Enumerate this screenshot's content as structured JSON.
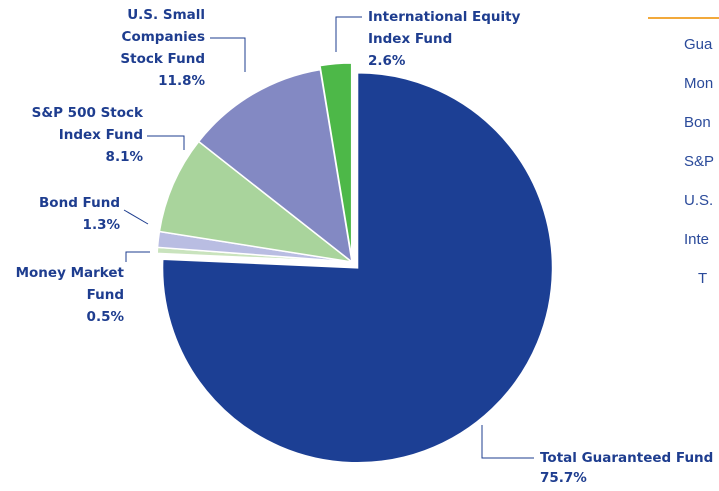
{
  "chart_data": {
    "type": "pie",
    "categories": [
      [
        "Total Guaranteed Fund"
      ],
      [
        "Money Market",
        "Fund"
      ],
      [
        "Bond Fund"
      ],
      [
        "S&P 500 Stock",
        "Index Fund"
      ],
      [
        "U.S. Small",
        "Companies",
        "Stock Fund"
      ],
      [
        "International Equity",
        "Index Fund"
      ]
    ],
    "values": [
      75.7,
      0.5,
      1.3,
      8.1,
      11.8,
      2.6
    ],
    "value_labels": [
      "75.7%",
      "0.5%",
      "1.3%",
      "8.1%",
      "11.8%",
      "2.6%"
    ],
    "colors": [
      "#1c3f94",
      "#c9e3bd",
      "#b9bde2",
      "#a9d49c",
      "#8389c3",
      "#4db848"
    ],
    "side_list": [
      "Gua",
      "Mon",
      "Bon",
      "S&P",
      "U.S.",
      "Inte",
      "T"
    ]
  }
}
